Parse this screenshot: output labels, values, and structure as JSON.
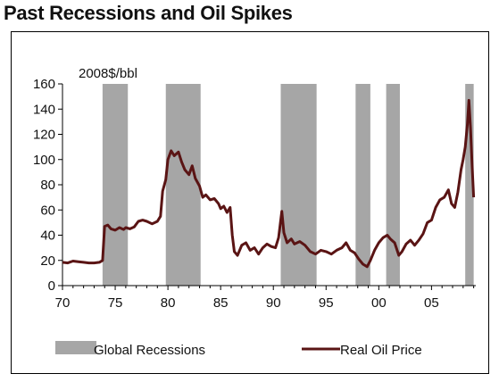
{
  "title": "Past Recessions and Oil Spikes",
  "chart_data": {
    "type": "line",
    "title": "Past Recessions and Oil Spikes",
    "ylabel": "2008$/bbl",
    "xlabel": "",
    "ylim": [
      0,
      160
    ],
    "xlim": [
      1970,
      2009.2
    ],
    "yticks": [
      "0",
      "20",
      "40",
      "60",
      "80",
      "100",
      "120",
      "140",
      "160"
    ],
    "xticks": [
      {
        "year": 1970,
        "label": "70"
      },
      {
        "year": 1975,
        "label": "75"
      },
      {
        "year": 1980,
        "label": "80"
      },
      {
        "year": 1985,
        "label": "85"
      },
      {
        "year": 1990,
        "label": "90"
      },
      {
        "year": 1995,
        "label": "95"
      },
      {
        "year": 2000,
        "label": "00"
      },
      {
        "year": 2005,
        "label": "05"
      }
    ],
    "grid": false,
    "legend": "bottom",
    "recessions": {
      "name": "Global Recessions",
      "color": "#a6a6a6",
      "periods": [
        [
          1973.8,
          1976.2
        ],
        [
          1979.8,
          1983.1
        ],
        [
          1990.7,
          1994.1
        ],
        [
          1997.8,
          1999.2
        ],
        [
          2000.7,
          2002.0
        ],
        [
          2008.2,
          2009.0
        ]
      ]
    },
    "series": [
      {
        "name": "Real Oil Price",
        "color": "#5a1414",
        "points": [
          [
            1970.0,
            18.5
          ],
          [
            1970.5,
            18.0
          ],
          [
            1971.0,
            19.5
          ],
          [
            1971.5,
            19.0
          ],
          [
            1972.0,
            18.5
          ],
          [
            1972.5,
            18.0
          ],
          [
            1973.0,
            18.0
          ],
          [
            1973.5,
            18.5
          ],
          [
            1973.8,
            20.0
          ],
          [
            1974.0,
            47.0
          ],
          [
            1974.3,
            48.0
          ],
          [
            1974.6,
            45.0
          ],
          [
            1975.0,
            44.0
          ],
          [
            1975.4,
            46.0
          ],
          [
            1975.8,
            44.5
          ],
          [
            1976.0,
            46.0
          ],
          [
            1976.4,
            45.0
          ],
          [
            1976.8,
            46.5
          ],
          [
            1977.2,
            51.0
          ],
          [
            1977.6,
            52.0
          ],
          [
            1978.0,
            51.0
          ],
          [
            1978.5,
            49.0
          ],
          [
            1979.0,
            51.0
          ],
          [
            1979.3,
            55.0
          ],
          [
            1979.5,
            75.0
          ],
          [
            1979.8,
            84.0
          ],
          [
            1980.0,
            100.0
          ],
          [
            1980.3,
            107.0
          ],
          [
            1980.6,
            103.0
          ],
          [
            1981.0,
            106.0
          ],
          [
            1981.3,
            98.0
          ],
          [
            1981.6,
            92.0
          ],
          [
            1982.0,
            88.0
          ],
          [
            1982.3,
            95.0
          ],
          [
            1982.6,
            85.0
          ],
          [
            1983.0,
            79.0
          ],
          [
            1983.3,
            70.0
          ],
          [
            1983.6,
            72.0
          ],
          [
            1984.0,
            68.0
          ],
          [
            1984.4,
            69.0
          ],
          [
            1984.8,
            65.0
          ],
          [
            1985.0,
            61.0
          ],
          [
            1985.3,
            63.0
          ],
          [
            1985.6,
            58.0
          ],
          [
            1985.9,
            62.0
          ],
          [
            1986.1,
            40.0
          ],
          [
            1986.3,
            27.0
          ],
          [
            1986.6,
            24.0
          ],
          [
            1987.0,
            32.0
          ],
          [
            1987.4,
            34.0
          ],
          [
            1987.8,
            28.0
          ],
          [
            1988.2,
            30.0
          ],
          [
            1988.6,
            25.0
          ],
          [
            1989.0,
            30.0
          ],
          [
            1989.4,
            33.0
          ],
          [
            1989.8,
            31.0
          ],
          [
            1990.2,
            30.0
          ],
          [
            1990.5,
            38.0
          ],
          [
            1990.8,
            59.0
          ],
          [
            1991.0,
            42.0
          ],
          [
            1991.3,
            34.0
          ],
          [
            1991.7,
            37.0
          ],
          [
            1992.0,
            33.0
          ],
          [
            1992.5,
            35.0
          ],
          [
            1993.0,
            32.0
          ],
          [
            1993.5,
            27.0
          ],
          [
            1994.0,
            25.0
          ],
          [
            1994.5,
            28.0
          ],
          [
            1995.0,
            27.0
          ],
          [
            1995.5,
            25.0
          ],
          [
            1996.0,
            28.0
          ],
          [
            1996.5,
            30.0
          ],
          [
            1996.9,
            34.0
          ],
          [
            1997.3,
            28.0
          ],
          [
            1997.7,
            26.0
          ],
          [
            1998.1,
            21.0
          ],
          [
            1998.5,
            17.0
          ],
          [
            1998.9,
            15.0
          ],
          [
            1999.2,
            20.0
          ],
          [
            1999.6,
            28.0
          ],
          [
            2000.0,
            34.0
          ],
          [
            2000.4,
            38.0
          ],
          [
            2000.8,
            40.0
          ],
          [
            2001.1,
            37.0
          ],
          [
            2001.5,
            34.0
          ],
          [
            2001.9,
            24.0
          ],
          [
            2002.2,
            27.0
          ],
          [
            2002.6,
            33.0
          ],
          [
            2003.0,
            36.0
          ],
          [
            2003.4,
            32.0
          ],
          [
            2003.8,
            36.0
          ],
          [
            2004.2,
            41.0
          ],
          [
            2004.6,
            50.0
          ],
          [
            2005.0,
            52.0
          ],
          [
            2005.4,
            62.0
          ],
          [
            2005.8,
            68.0
          ],
          [
            2006.2,
            70.0
          ],
          [
            2006.6,
            76.0
          ],
          [
            2006.9,
            65.0
          ],
          [
            2007.2,
            62.0
          ],
          [
            2007.5,
            74.0
          ],
          [
            2007.8,
            92.0
          ],
          [
            2008.0,
            100.0
          ],
          [
            2008.2,
            110.0
          ],
          [
            2008.4,
            128.0
          ],
          [
            2008.55,
            147.0
          ],
          [
            2008.7,
            125.0
          ],
          [
            2008.85,
            95.0
          ],
          [
            2009.0,
            70.0
          ]
        ]
      }
    ]
  },
  "legend": {
    "recessions_label": "Global Recessions",
    "oil_label": "Real Oil Price"
  }
}
